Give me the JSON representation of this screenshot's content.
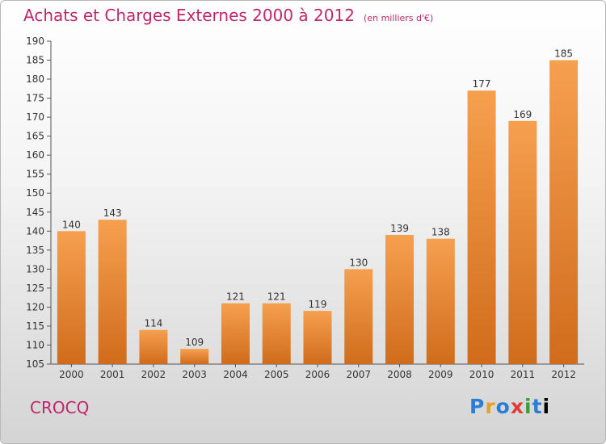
{
  "header": {
    "title": "Achats et Charges Externes 2000 à 2012",
    "unit": "(en milliers d'€)"
  },
  "footer": {
    "commune": "CROCQ",
    "logo": "Proxiti"
  },
  "colors": {
    "bar_light": "#f6a04f",
    "bar_dark": "#d06c1c",
    "title": "#c0266b"
  },
  "chart_data": {
    "type": "bar",
    "title": "Achats et Charges Externes 2000 à 2012",
    "subtitle": "(en milliers d'€)",
    "categories": [
      "2000",
      "2001",
      "2002",
      "2003",
      "2004",
      "2005",
      "2006",
      "2007",
      "2008",
      "2009",
      "2010",
      "2011",
      "2012"
    ],
    "values": [
      140,
      143,
      114,
      109,
      121,
      121,
      119,
      130,
      139,
      138,
      177,
      169,
      185
    ],
    "ylim": [
      105,
      190
    ],
    "yticks": [
      105,
      110,
      115,
      120,
      125,
      130,
      135,
      140,
      145,
      150,
      155,
      160,
      165,
      170,
      175,
      180,
      185,
      190
    ],
    "grid": false
  }
}
